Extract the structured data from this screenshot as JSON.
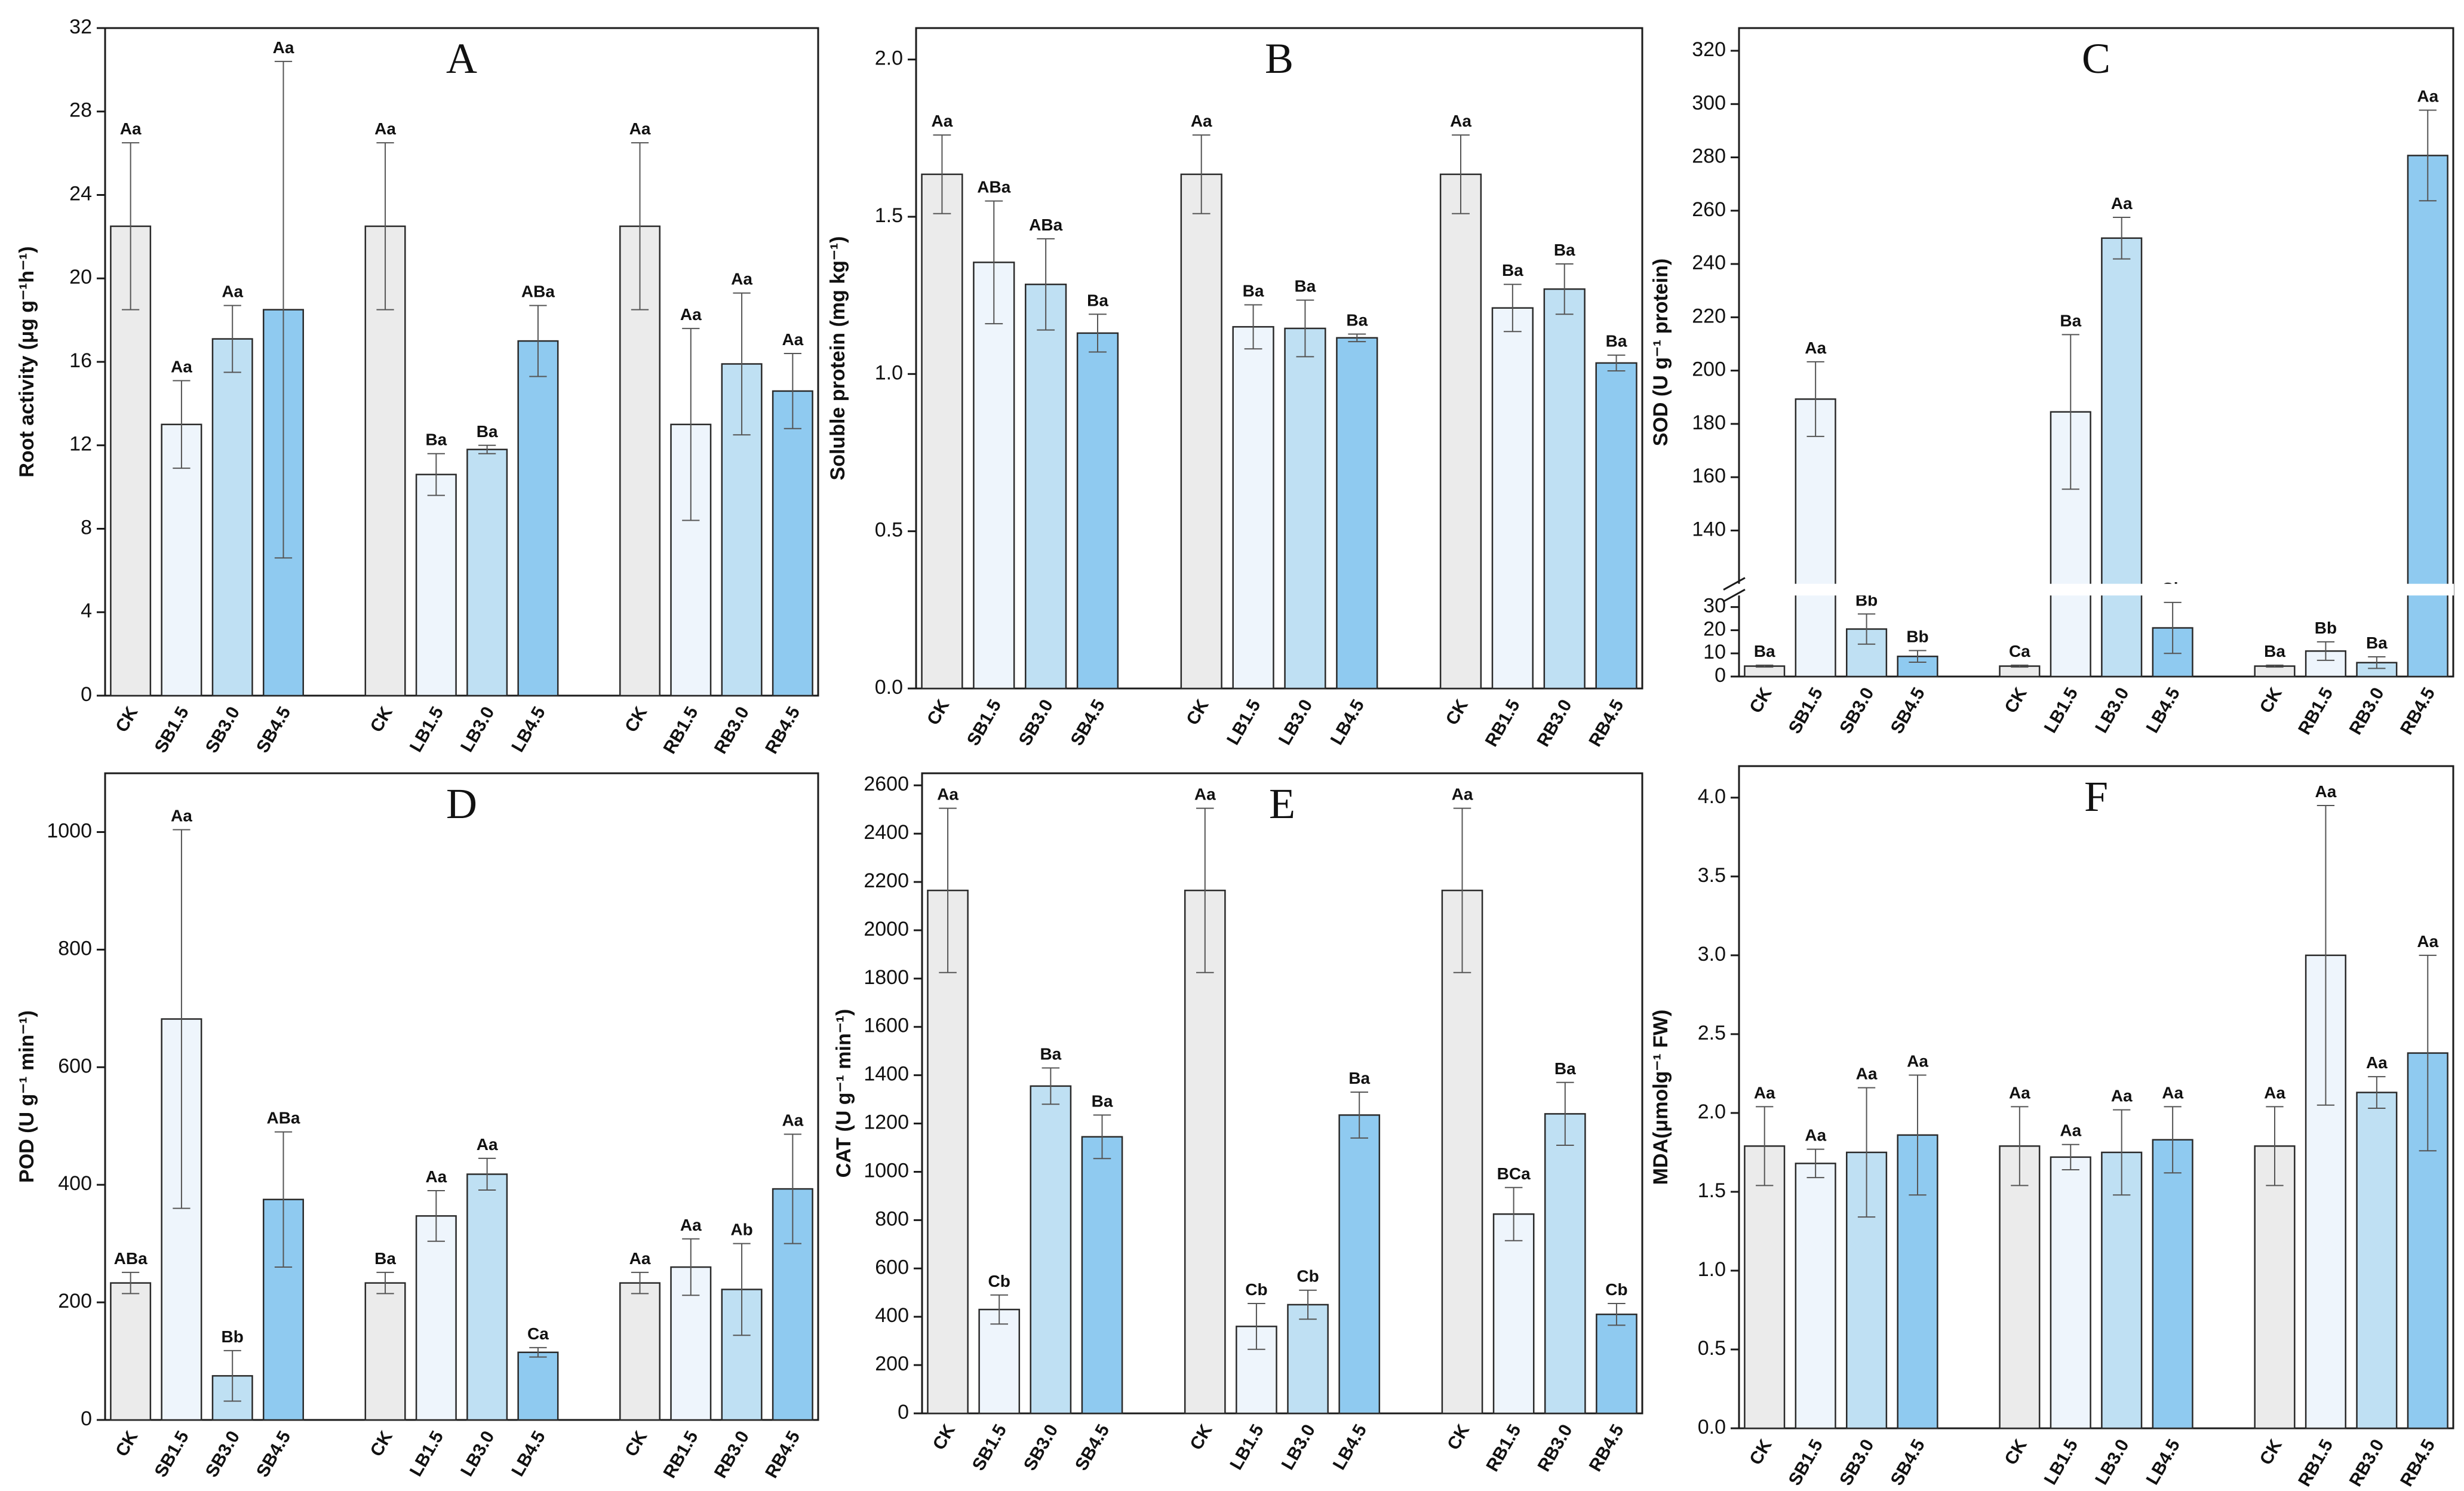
{
  "chart_data": [
    {
      "panel": "A",
      "type": "bar",
      "ylabel": "Root activity (μg g-1h-1)",
      "ylim": [
        0,
        32
      ],
      "yticks": [
        0,
        4,
        8,
        12,
        16,
        20,
        24,
        28,
        32
      ],
      "groups": [
        {
          "categories": [
            "CK",
            "SB1.5",
            "SB3.0",
            "SB4.5"
          ],
          "values": [
            22.5,
            13.0,
            17.1,
            18.5
          ],
          "errors": [
            4.0,
            2.1,
            1.6,
            11.9
          ],
          "labels": [
            "Aa",
            "Aa",
            "Aa",
            "Aa"
          ]
        },
        {
          "categories": [
            "CK",
            "LB1.5",
            "LB3.0",
            "LB4.5"
          ],
          "values": [
            22.5,
            10.6,
            11.8,
            17.0
          ],
          "errors": [
            4.0,
            1.0,
            0.2,
            1.7
          ],
          "labels": [
            "Aa",
            "Ba",
            "Ba",
            "ABa"
          ]
        },
        {
          "categories": [
            "CK",
            "RB1.5",
            "RB3.0",
            "RB4.5"
          ],
          "values": [
            22.5,
            13.0,
            15.9,
            14.6
          ],
          "errors": [
            4.0,
            4.6,
            3.4,
            1.8
          ],
          "labels": [
            "Aa",
            "Aa",
            "Aa",
            "Aa"
          ]
        }
      ]
    },
    {
      "panel": "B",
      "type": "bar",
      "ylabel": "Soluble protein (mg kg-1)",
      "ylim": [
        0,
        2.1
      ],
      "yticks": [
        0.0,
        0.5,
        1.0,
        1.5,
        2.0
      ],
      "yticklabels": [
        "0.0",
        "0.5",
        "1.0",
        "1.5",
        "2.0"
      ],
      "groups": [
        {
          "categories": [
            "CK",
            "SB1.5",
            "SB3.0",
            "SB4.5"
          ],
          "values": [
            1.635,
            1.355,
            1.285,
            1.13
          ],
          "errors": [
            0.125,
            0.195,
            0.145,
            0.06
          ],
          "labels": [
            "Aa",
            "ABa",
            "ABa",
            "Ba"
          ]
        },
        {
          "categories": [
            "CK",
            "LB1.5",
            "LB3.0",
            "LB4.5"
          ],
          "values": [
            1.635,
            1.15,
            1.145,
            1.115
          ],
          "errors": [
            0.125,
            0.07,
            0.09,
            0.012
          ],
          "labels": [
            "Aa",
            "Ba",
            "Ba",
            "Ba"
          ]
        },
        {
          "categories": [
            "CK",
            "RB1.5",
            "RB3.0",
            "RB4.5"
          ],
          "values": [
            1.635,
            1.21,
            1.27,
            1.035
          ],
          "errors": [
            0.125,
            0.075,
            0.08,
            0.025
          ],
          "labels": [
            "Aa",
            "Ba",
            "Ba",
            "Ba"
          ]
        }
      ]
    },
    {
      "panel": "C",
      "type": "bar",
      "ylabel": "SOD (U g-1 protein)",
      "axis_break": {
        "lower": [
          0,
          35
        ],
        "upper": [
          120,
          320
        ]
      },
      "yticks_lower": [
        0,
        10,
        20,
        30
      ],
      "yticks_upper": [
        140,
        160,
        180,
        200,
        220,
        240,
        260,
        280,
        300,
        320
      ],
      "groups": [
        {
          "categories": [
            "CK",
            "SB1.5",
            "SB3.0",
            "SB4.5"
          ],
          "values": [
            4.5,
            189.3,
            20.5,
            8.7
          ],
          "errors": [
            0.4,
            14.0,
            6.5,
            2.5
          ],
          "labels": [
            "Ba",
            "Aa",
            "Bb",
            "Bb"
          ]
        },
        {
          "categories": [
            "CK",
            "LB1.5",
            "LB3.0",
            "LB4.5"
          ],
          "values": [
            4.5,
            184.5,
            249.7,
            21.0
          ],
          "errors": [
            0.4,
            29.0,
            7.8,
            11.0
          ],
          "labels": [
            "Ca",
            "Ba",
            "Aa",
            "Cb"
          ]
        },
        {
          "categories": [
            "CK",
            "RB1.5",
            "RB3.0",
            "RB4.5"
          ],
          "values": [
            4.5,
            11.0,
            6.0,
            280.7
          ],
          "errors": [
            0.4,
            4.0,
            2.5,
            17.0
          ],
          "labels": [
            "Ba",
            "Bb",
            "Ba",
            "Aa"
          ]
        }
      ]
    },
    {
      "panel": "D",
      "type": "bar",
      "ylabel": "POD (U g-1 min-1)",
      "ylim": [
        0,
        1100
      ],
      "yticks": [
        0,
        200,
        400,
        600,
        800,
        1000
      ],
      "groups": [
        {
          "categories": [
            "CK",
            "SB1.5",
            "SB3.0",
            "SB4.5"
          ],
          "values": [
            233,
            682,
            75,
            375
          ],
          "errors": [
            18,
            322,
            43,
            115
          ],
          "labels": [
            "ABa",
            "Aa",
            "Bb",
            "ABa"
          ]
        },
        {
          "categories": [
            "CK",
            "LB1.5",
            "LB3.0",
            "LB4.5"
          ],
          "values": [
            233,
            347,
            418,
            115
          ],
          "errors": [
            18,
            43,
            27,
            8
          ],
          "labels": [
            "Ba",
            "Aa",
            "Aa",
            "Ca"
          ]
        },
        {
          "categories": [
            "CK",
            "RB1.5",
            "RB3.0",
            "RB4.5"
          ],
          "values": [
            233,
            260,
            222,
            393
          ],
          "errors": [
            18,
            48,
            78,
            93
          ],
          "labels": [
            "Aa",
            "Aa",
            "Ab",
            "Aa"
          ]
        }
      ]
    },
    {
      "panel": "E",
      "type": "bar",
      "ylabel": "CAT (U g-1 min-1)",
      "ylim": [
        0,
        2650
      ],
      "yticks": [
        0,
        200,
        400,
        600,
        800,
        1000,
        1200,
        1400,
        1600,
        1800,
        2000,
        2200,
        2400,
        2600
      ],
      "groups": [
        {
          "categories": [
            "CK",
            "SB1.5",
            "SB3.0",
            "SB4.5"
          ],
          "values": [
            2165,
            430,
            1355,
            1145
          ],
          "errors": [
            340,
            60,
            75,
            90
          ],
          "labels": [
            "Aa",
            "Cb",
            "Ba",
            "Ba"
          ]
        },
        {
          "categories": [
            "CK",
            "LB1.5",
            "LB3.0",
            "LB4.5"
          ],
          "values": [
            2165,
            360,
            450,
            1235
          ],
          "errors": [
            340,
            95,
            60,
            95
          ],
          "labels": [
            "Aa",
            "Cb",
            "Cb",
            "Ba"
          ]
        },
        {
          "categories": [
            "CK",
            "RB1.5",
            "RB3.0",
            "RB4.5"
          ],
          "values": [
            2165,
            825,
            1240,
            410
          ],
          "errors": [
            340,
            110,
            130,
            45
          ],
          "labels": [
            "Aa",
            "BCa",
            "Ba",
            "Cb"
          ]
        }
      ]
    },
    {
      "panel": "F",
      "type": "bar",
      "ylabel": "MDA(μmolg-1 FW)",
      "ylim": [
        0,
        4.2
      ],
      "yticks": [
        0.0,
        0.5,
        1.0,
        1.5,
        2.0,
        2.5,
        3.0,
        3.5,
        4.0
      ],
      "yticklabels": [
        "0.0",
        "0.5",
        "1.0",
        "1.5",
        "2.0",
        "2.5",
        "3.0",
        "3.5",
        "4.0"
      ],
      "groups": [
        {
          "categories": [
            "CK",
            "SB1.5",
            "SB3.0",
            "SB4.5"
          ],
          "values": [
            1.79,
            1.68,
            1.75,
            1.86
          ],
          "errors": [
            0.25,
            0.09,
            0.41,
            0.38
          ],
          "labels": [
            "Aa",
            "Aa",
            "Aa",
            "Aa"
          ]
        },
        {
          "categories": [
            "CK",
            "LB1.5",
            "LB3.0",
            "LB4.5"
          ],
          "values": [
            1.79,
            1.72,
            1.75,
            1.83
          ],
          "errors": [
            0.25,
            0.08,
            0.27,
            0.21
          ],
          "labels": [
            "Aa",
            "Aa",
            "Aa",
            "Aa"
          ]
        },
        {
          "categories": [
            "CK",
            "RB1.5",
            "RB3.0",
            "RB4.5"
          ],
          "values": [
            1.79,
            3.0,
            2.13,
            2.38
          ],
          "errors": [
            0.25,
            0.95,
            0.1,
            0.62
          ],
          "labels": [
            "Aa",
            "Aa",
            "Aa",
            "Aa"
          ]
        }
      ]
    }
  ],
  "colors": {
    "bar_fills": [
      "#ebebeb",
      "#eef5fc",
      "#bfe0f3",
      "#8fcaf0"
    ],
    "bar_stroke": "#2a2a2a",
    "error_bar": "#555555",
    "axis": "#1a1a1a"
  }
}
